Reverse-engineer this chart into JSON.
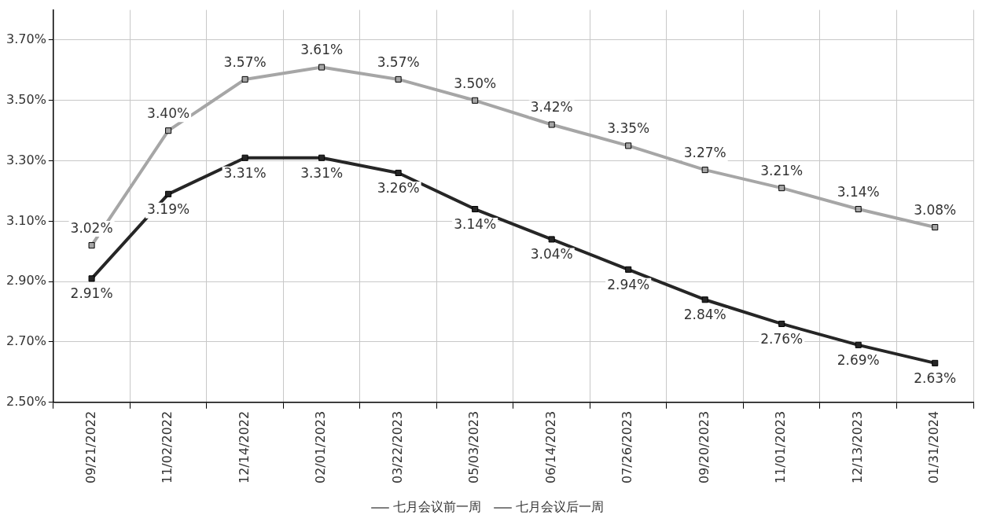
{
  "chart_data": {
    "type": "line",
    "categories": [
      "09/21/2022",
      "11/02/2022",
      "12/14/2022",
      "02/01/2023",
      "03/22/2023",
      "05/03/2023",
      "06/14/2023",
      "07/26/2023",
      "09/20/2023",
      "11/01/2023",
      "12/13/2023",
      "01/31/2024"
    ],
    "series": [
      {
        "name": "七月会议前一周",
        "color": "#a6a6a6",
        "values": [
          3.02,
          3.4,
          3.57,
          3.61,
          3.57,
          3.5,
          3.42,
          3.35,
          3.27,
          3.21,
          3.14,
          3.08
        ],
        "value_labels": [
          "3.02%",
          "3.40%",
          "3.57%",
          "3.61%",
          "3.57%",
          "3.50%",
          "3.42%",
          "3.35%",
          "3.27%",
          "3.21%",
          "3.14%",
          "3.08%"
        ]
      },
      {
        "name": "七月会议后一周",
        "color": "#262626",
        "values": [
          2.91,
          3.19,
          3.31,
          3.31,
          3.26,
          3.14,
          3.04,
          2.94,
          2.84,
          2.76,
          2.69,
          2.63
        ],
        "value_labels": [
          "2.91%",
          "3.19%",
          "3.31%",
          "3.31%",
          "3.26%",
          "3.14%",
          "3.04%",
          "2.94%",
          "2.84%",
          "2.76%",
          "2.69%",
          "2.63%"
        ]
      }
    ],
    "ylim": [
      2.5,
      3.8
    ],
    "yticks": [
      {
        "value": 2.5,
        "label": "2.50%"
      },
      {
        "value": 2.7,
        "label": "2.70%"
      },
      {
        "value": 2.9,
        "label": "2.90%"
      },
      {
        "value": 3.1,
        "label": "3.10%"
      },
      {
        "value": 3.3,
        "label": "3.30%"
      },
      {
        "value": 3.5,
        "label": "3.50%"
      },
      {
        "value": 3.7,
        "label": "3.70%"
      }
    ],
    "grid": true,
    "legend": "bottom",
    "marker": "square",
    "line_style": "solid"
  }
}
